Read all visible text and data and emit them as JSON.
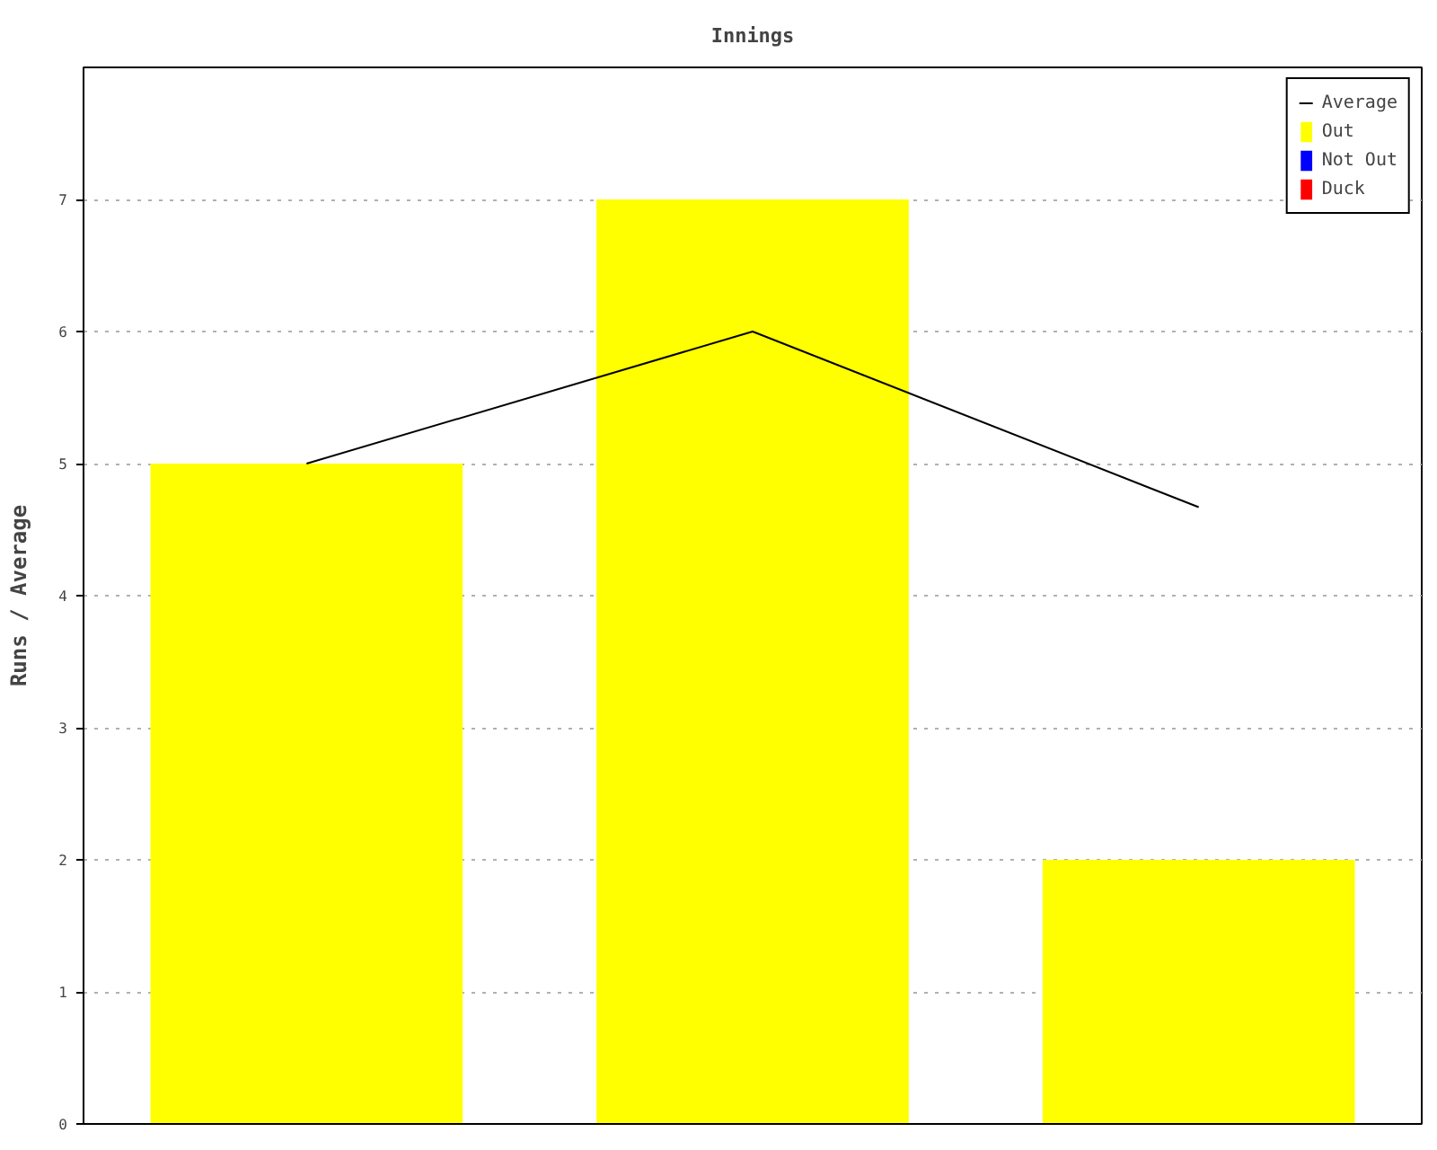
{
  "chart_data": {
    "type": "bar",
    "title": "Innings",
    "ylabel": "Runs / Average",
    "categories": [
      null,
      null,
      null
    ],
    "series": [
      {
        "name": "Average",
        "type": "line",
        "color": "#000000",
        "values": [
          5,
          6,
          4.67
        ]
      },
      {
        "name": "Out",
        "color": "#ffff00",
        "values": [
          5,
          7,
          2
        ]
      },
      {
        "name": "Not Out",
        "color": "#0000ff",
        "values": [
          null,
          null,
          null
        ]
      },
      {
        "name": "Duck",
        "color": "#ff0000",
        "values": [
          null,
          null,
          null
        ]
      }
    ],
    "ylim": [
      0,
      8
    ],
    "yticks": [
      0,
      1,
      2,
      3,
      4,
      5,
      6,
      7
    ],
    "grid": "y",
    "legend": "top right",
    "marker": "none",
    "line_style": "solid"
  }
}
